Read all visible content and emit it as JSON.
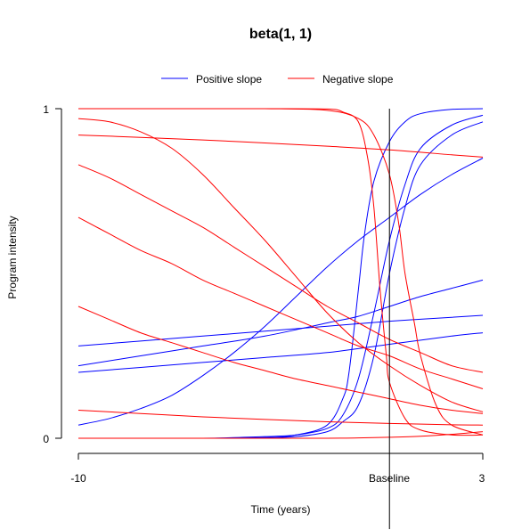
{
  "chart_data": {
    "type": "line",
    "title": "beta(1, 1)",
    "xlabel": "Time (years)",
    "ylabel": "Program intensity",
    "xlim": [
      -10,
      3
    ],
    "ylim": [
      0,
      1
    ],
    "x_ticks": [
      {
        "value": -10,
        "label": "-10"
      },
      {
        "value": 0,
        "label": "Baseline"
      },
      {
        "value": 3,
        "label": "3"
      }
    ],
    "y_ticks": [
      {
        "value": 0,
        "label": "0"
      },
      {
        "value": 1,
        "label": "1"
      }
    ],
    "reference_line": {
      "x": 0,
      "color": "#000000"
    },
    "legend": {
      "placement": "top",
      "entries": [
        {
          "label": "Positive slope",
          "color": "#0000ff"
        },
        {
          "label": "Negative slope",
          "color": "#ff0000"
        }
      ]
    },
    "series": [
      {
        "group": "Positive slope",
        "color": "#0000ff",
        "points": [
          [
            -10,
            0
          ],
          [
            -8,
            0
          ],
          [
            -6,
            0
          ],
          [
            -4,
            0.002
          ],
          [
            -3,
            0.01
          ],
          [
            -2,
            0.04
          ],
          [
            -1.5,
            0.12
          ],
          [
            -1.3,
            0.2
          ],
          [
            -1,
            0.45
          ],
          [
            -0.8,
            0.62
          ],
          [
            -0.5,
            0.78
          ],
          [
            0,
            0.9
          ],
          [
            0.5,
            0.96
          ],
          [
            1,
            0.985
          ],
          [
            2,
            0.998
          ],
          [
            3,
            1
          ]
        ]
      },
      {
        "group": "Positive slope",
        "color": "#0000ff",
        "points": [
          [
            -10,
            0
          ],
          [
            -6,
            0
          ],
          [
            -5,
            0.002
          ],
          [
            -4,
            0.005
          ],
          [
            -3,
            0.01
          ],
          [
            -2,
            0.03
          ],
          [
            -1.5,
            0.07
          ],
          [
            -1,
            0.18
          ],
          [
            -0.5,
            0.38
          ],
          [
            0,
            0.6
          ],
          [
            0.5,
            0.77
          ],
          [
            1,
            0.88
          ],
          [
            2,
            0.95
          ],
          [
            3,
            0.98
          ]
        ]
      },
      {
        "group": "Positive slope",
        "color": "#0000ff",
        "points": [
          [
            -10,
            0
          ],
          [
            -6,
            0
          ],
          [
            -4,
            0.002
          ],
          [
            -3,
            0.005
          ],
          [
            -2,
            0.02
          ],
          [
            -1.5,
            0.05
          ],
          [
            -1,
            0.1
          ],
          [
            -0.5,
            0.25
          ],
          [
            0,
            0.5
          ],
          [
            0.5,
            0.7
          ],
          [
            1,
            0.83
          ],
          [
            2,
            0.92
          ],
          [
            3,
            0.96
          ]
        ]
      },
      {
        "group": "Positive slope",
        "color": "#0000ff",
        "points": [
          [
            -10,
            0.04
          ],
          [
            -9,
            0.06
          ],
          [
            -8,
            0.09
          ],
          [
            -7,
            0.13
          ],
          [
            -6,
            0.19
          ],
          [
            -5,
            0.26
          ],
          [
            -4,
            0.34
          ],
          [
            -3,
            0.43
          ],
          [
            -2,
            0.52
          ],
          [
            -1,
            0.6
          ],
          [
            0,
            0.67
          ],
          [
            1,
            0.74
          ],
          [
            2,
            0.8
          ],
          [
            3,
            0.85
          ]
        ]
      },
      {
        "group": "Positive slope",
        "color": "#0000ff",
        "points": [
          [
            -10,
            0.22
          ],
          [
            -8,
            0.25
          ],
          [
            -6,
            0.28
          ],
          [
            -4,
            0.31
          ],
          [
            -2,
            0.35
          ],
          [
            -1,
            0.37
          ],
          [
            0,
            0.4
          ],
          [
            1,
            0.43
          ],
          [
            2,
            0.455
          ],
          [
            3,
            0.48
          ]
        ]
      },
      {
        "group": "Positive slope",
        "color": "#0000ff",
        "points": [
          [
            -10,
            0.28
          ],
          [
            -8,
            0.295
          ],
          [
            -6,
            0.31
          ],
          [
            -4,
            0.325
          ],
          [
            -2,
            0.34
          ],
          [
            0,
            0.355
          ],
          [
            2,
            0.367
          ],
          [
            3,
            0.373
          ]
        ]
      },
      {
        "group": "Positive slope",
        "color": "#0000ff",
        "points": [
          [
            -10,
            0.2
          ],
          [
            -8,
            0.215
          ],
          [
            -6,
            0.23
          ],
          [
            -4,
            0.245
          ],
          [
            -2,
            0.26
          ],
          [
            0,
            0.285
          ],
          [
            2,
            0.31
          ],
          [
            3,
            0.32
          ]
        ]
      },
      {
        "group": "Negative slope",
        "color": "#ff0000",
        "points": [
          [
            -10,
            1
          ],
          [
            -6,
            1
          ],
          [
            -4,
            1
          ],
          [
            -2,
            0.999
          ],
          [
            -1.5,
            0.99
          ],
          [
            -1,
            0.96
          ],
          [
            -0.7,
            0.85
          ],
          [
            -0.5,
            0.7
          ],
          [
            -0.3,
            0.45
          ],
          [
            -0.1,
            0.25
          ],
          [
            0,
            0.17
          ],
          [
            0.5,
            0.06
          ],
          [
            1,
            0.025
          ],
          [
            2,
            0.01
          ],
          [
            3,
            0.01
          ]
        ]
      },
      {
        "group": "Negative slope",
        "color": "#ff0000",
        "points": [
          [
            -10,
            1
          ],
          [
            -6,
            1
          ],
          [
            -4,
            1
          ],
          [
            -2,
            0.995
          ],
          [
            -1,
            0.97
          ],
          [
            -0.5,
            0.92
          ],
          [
            0,
            0.8
          ],
          [
            0.3,
            0.65
          ],
          [
            0.5,
            0.5
          ],
          [
            0.8,
            0.35
          ],
          [
            1,
            0.25
          ],
          [
            1.5,
            0.1
          ],
          [
            2,
            0.04
          ],
          [
            3,
            0.01
          ]
        ]
      },
      {
        "group": "Negative slope",
        "color": "#ff0000",
        "points": [
          [
            -10,
            0.97
          ],
          [
            -9,
            0.96
          ],
          [
            -8,
            0.93
          ],
          [
            -7,
            0.88
          ],
          [
            -6,
            0.8
          ],
          [
            -5,
            0.7
          ],
          [
            -4,
            0.6
          ],
          [
            -3,
            0.49
          ],
          [
            -2,
            0.38
          ],
          [
            -1,
            0.29
          ],
          [
            0,
            0.22
          ],
          [
            1,
            0.16
          ],
          [
            2,
            0.11
          ],
          [
            3,
            0.08
          ]
        ]
      },
      {
        "group": "Negative slope",
        "color": "#ff0000",
        "points": [
          [
            -10,
            0.92
          ],
          [
            -8,
            0.913
          ],
          [
            -6,
            0.905
          ],
          [
            -4,
            0.896
          ],
          [
            -2,
            0.886
          ],
          [
            0,
            0.875
          ],
          [
            2,
            0.86
          ],
          [
            3,
            0.853
          ]
        ]
      },
      {
        "group": "Negative slope",
        "color": "#ff0000",
        "points": [
          [
            -10,
            0.83
          ],
          [
            -9,
            0.79
          ],
          [
            -8,
            0.74
          ],
          [
            -7,
            0.69
          ],
          [
            -6,
            0.64
          ],
          [
            -5,
            0.58
          ],
          [
            -4,
            0.52
          ],
          [
            -3,
            0.46
          ],
          [
            -2,
            0.4
          ],
          [
            -1,
            0.35
          ],
          [
            0,
            0.3
          ],
          [
            1,
            0.26
          ],
          [
            2,
            0.22
          ],
          [
            3,
            0.2
          ]
        ]
      },
      {
        "group": "Negative slope",
        "color": "#ff0000",
        "points": [
          [
            -10,
            0.67
          ],
          [
            -9,
            0.62
          ],
          [
            -8,
            0.57
          ],
          [
            -7,
            0.53
          ],
          [
            -6,
            0.48
          ],
          [
            -5,
            0.44
          ],
          [
            -4,
            0.4
          ],
          [
            -3,
            0.36
          ],
          [
            -2,
            0.32
          ],
          [
            -1,
            0.28
          ],
          [
            0,
            0.25
          ],
          [
            1,
            0.21
          ],
          [
            2,
            0.18
          ],
          [
            3,
            0.15
          ]
        ]
      },
      {
        "group": "Negative slope",
        "color": "#ff0000",
        "points": [
          [
            -10,
            0.4
          ],
          [
            -9,
            0.36
          ],
          [
            -8,
            0.32
          ],
          [
            -7,
            0.29
          ],
          [
            -6,
            0.26
          ],
          [
            -5,
            0.23
          ],
          [
            -4,
            0.205
          ],
          [
            -3,
            0.18
          ],
          [
            -2,
            0.16
          ],
          [
            -1,
            0.14
          ],
          [
            0,
            0.12
          ],
          [
            1,
            0.1
          ],
          [
            2,
            0.085
          ],
          [
            3,
            0.075
          ]
        ]
      },
      {
        "group": "Negative slope",
        "color": "#ff0000",
        "points": [
          [
            -10,
            0.085
          ],
          [
            -8,
            0.075
          ],
          [
            -6,
            0.065
          ],
          [
            -4,
            0.057
          ],
          [
            -2,
            0.05
          ],
          [
            0,
            0.045
          ],
          [
            2,
            0.041
          ],
          [
            3,
            0.04
          ]
        ]
      },
      {
        "group": "Negative slope",
        "color": "#ff0000",
        "points": [
          [
            -10,
            0
          ],
          [
            -4,
            0
          ],
          [
            -2,
            0
          ],
          [
            -1,
            0.001
          ],
          [
            0,
            0.003
          ],
          [
            1,
            0.006
          ],
          [
            2,
            0.012
          ],
          [
            3,
            0.02
          ]
        ]
      }
    ]
  }
}
